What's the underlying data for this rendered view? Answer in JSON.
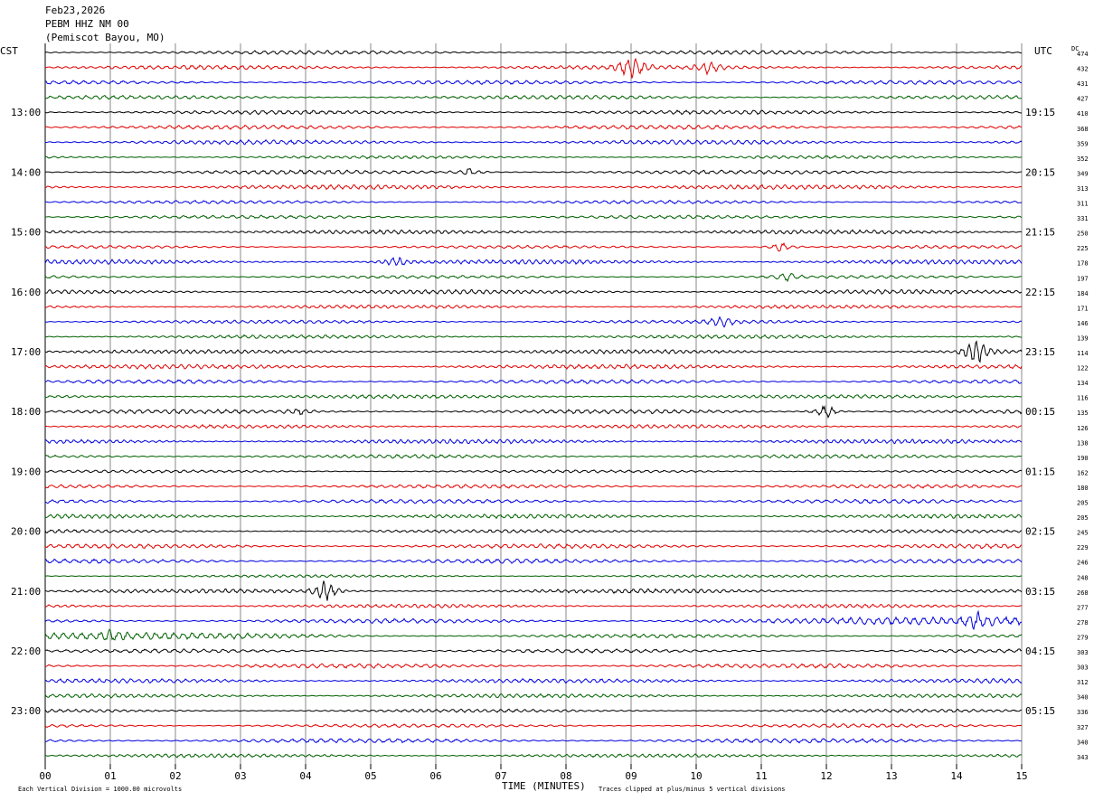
{
  "header": {
    "date": "Feb23,2026",
    "station": "PEBM HHZ NM 00",
    "location": "(Pemiscot Bayou, MO)"
  },
  "labels": {
    "left_tz": "CST",
    "right_tz": "UTC",
    "dc_header": "DC",
    "xlabel": "TIME (MINUTES)",
    "footer_left": "Each Vertical Division = 1000.00 microvolts",
    "footer_right": "Traces clipped at plus/minus 5 vertical divisions"
  },
  "chart_data": {
    "type": "line",
    "title": "PEBM HHZ NM 00",
    "xlabel": "TIME (MINUTES)",
    "xlim": [
      0,
      15
    ],
    "x_ticks": [
      "00",
      "01",
      "02",
      "03",
      "04",
      "05",
      "06",
      "07",
      "08",
      "09",
      "10",
      "11",
      "12",
      "13",
      "14",
      "15"
    ],
    "trace_colors": [
      "#000000",
      "#e00000",
      "#0000e0",
      "#006000"
    ],
    "left_hour_labels": [
      "13:00",
      "14:00",
      "15:00",
      "16:00",
      "17:00",
      "18:00",
      "19:00",
      "20:00",
      "21:00",
      "22:00",
      "23:00"
    ],
    "right_hour_labels": [
      "19:15",
      "20:15",
      "21:15",
      "22:15",
      "23:15",
      "00:15",
      "01:15",
      "02:15",
      "03:15",
      "04:15",
      "05:15"
    ],
    "dc_offsets": [
      474,
      432,
      431,
      427,
      410,
      368,
      359,
      352,
      349,
      313,
      311,
      331,
      250,
      225,
      178,
      197,
      184,
      171,
      146,
      139,
      114,
      122,
      134,
      116,
      135,
      126,
      138,
      190,
      162,
      180,
      205,
      205,
      245,
      229,
      246,
      248,
      268,
      277,
      278,
      279,
      303,
      303,
      312,
      340,
      336,
      327,
      340,
      343
    ],
    "events": [
      {
        "trace": 1,
        "minute": 9.0,
        "amplitude": 3.0
      },
      {
        "trace": 1,
        "minute": 10.2,
        "amplitude": 1.5
      },
      {
        "trace": 8,
        "minute": 6.5,
        "amplitude": 0.9
      },
      {
        "trace": 13,
        "minute": 11.3,
        "amplitude": 1.2
      },
      {
        "trace": 14,
        "minute": 5.4,
        "amplitude": 1.2
      },
      {
        "trace": 15,
        "minute": 11.4,
        "amplitude": 0.9
      },
      {
        "trace": 18,
        "minute": 10.4,
        "amplitude": 1.1
      },
      {
        "trace": 20,
        "minute": 14.3,
        "amplitude": 3.0
      },
      {
        "trace": 24,
        "minute": 3.9,
        "amplitude": 0.8
      },
      {
        "trace": 24,
        "minute": 12.0,
        "amplitude": 1.6
      },
      {
        "trace": 36,
        "minute": 4.3,
        "amplitude": 2.4
      },
      {
        "trace": 38,
        "minute": 14.3,
        "amplitude": 1.4
      },
      {
        "trace": 39,
        "minute": 1.0,
        "amplitude": 1.0
      }
    ]
  }
}
